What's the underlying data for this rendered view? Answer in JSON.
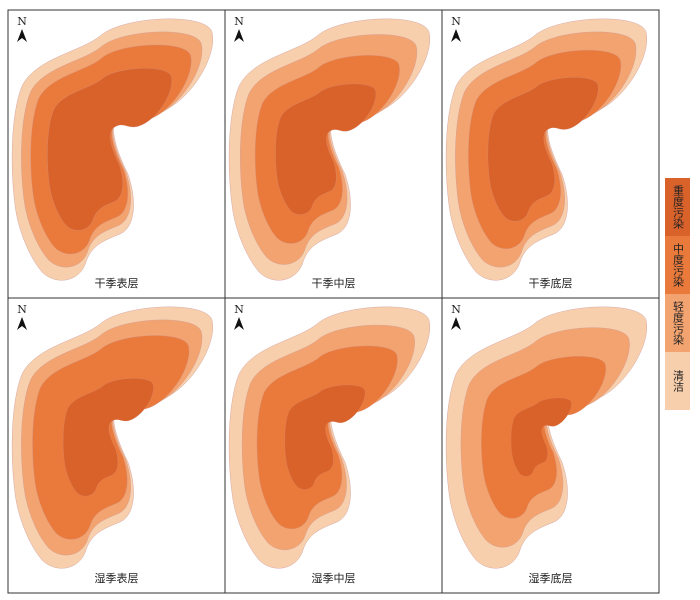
{
  "panels": [
    {
      "label": "干季表层",
      "north": "N"
    },
    {
      "label": "干季中层",
      "north": "N"
    },
    {
      "label": "干季底层",
      "north": "N"
    },
    {
      "label": "湿季表层",
      "north": "N"
    },
    {
      "label": "湿季中层",
      "north": "N"
    },
    {
      "label": "湿季底层",
      "north": "N"
    }
  ],
  "legend": [
    {
      "label": "重度污染",
      "color": "#d9622b"
    },
    {
      "label": "中度污染",
      "color": "#ea7a3c"
    },
    {
      "label": "轻度污染",
      "color": "#f2a36f"
    },
    {
      "label": "清洁",
      "color": "#f8cfad"
    }
  ]
}
